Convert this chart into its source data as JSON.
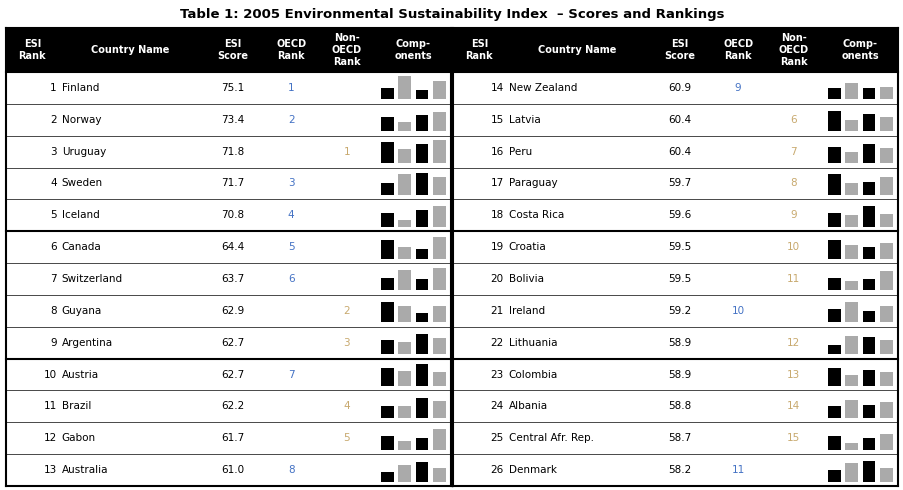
{
  "title": "Table 1: 2005 Environmental Sustainability Index  – Scores and Rankings",
  "header": [
    "ESI\nRank",
    "Country Name",
    "ESI\nScore",
    "OECD\nRank",
    "Non-\nOECD\nRank",
    "Comp-\nonents"
  ],
  "left_data": [
    [
      1,
      "Finland",
      75.1,
      1,
      "",
      [
        0.5,
        1.0,
        0.4,
        0.8
      ]
    ],
    [
      2,
      "Norway",
      73.4,
      2,
      "",
      [
        0.6,
        0.4,
        0.7,
        0.85
      ]
    ],
    [
      3,
      "Uruguay",
      71.8,
      "",
      1,
      [
        0.9,
        0.6,
        0.85,
        1.0
      ]
    ],
    [
      4,
      "Sweden",
      71.7,
      3,
      "",
      [
        0.5,
        0.9,
        0.95,
        0.8
      ]
    ],
    [
      5,
      "Iceland",
      70.8,
      4,
      "",
      [
        0.6,
        0.3,
        0.75,
        0.9
      ]
    ],
    [
      6,
      "Canada",
      64.4,
      5,
      "",
      [
        0.8,
        0.5,
        0.4,
        0.95
      ]
    ],
    [
      7,
      "Switzerland",
      63.7,
      6,
      "",
      [
        0.55,
        0.9,
        0.5,
        1.0
      ]
    ],
    [
      8,
      "Guyana",
      62.9,
      "",
      2,
      [
        0.9,
        0.7,
        0.4,
        0.7
      ]
    ],
    [
      9,
      "Argentina",
      62.7,
      "",
      3,
      [
        0.6,
        0.55,
        0.9,
        0.7
      ]
    ],
    [
      10,
      "Austria",
      62.7,
      7,
      "",
      [
        0.8,
        0.65,
        0.95,
        0.6
      ]
    ],
    [
      11,
      "Brazil",
      62.2,
      "",
      4,
      [
        0.5,
        0.5,
        0.85,
        0.75
      ]
    ],
    [
      12,
      "Gabon",
      61.7,
      "",
      5,
      [
        0.6,
        0.4,
        0.5,
        0.9
      ]
    ],
    [
      13,
      "Australia",
      61.0,
      8,
      "",
      [
        0.4,
        0.7,
        0.85,
        0.6
      ]
    ]
  ],
  "right_data": [
    [
      14,
      "New Zealand",
      60.9,
      9,
      "",
      [
        0.5,
        0.7,
        0.5,
        0.55
      ]
    ],
    [
      15,
      "Latvia",
      60.4,
      "",
      6,
      [
        0.9,
        0.5,
        0.75,
        0.6
      ]
    ],
    [
      16,
      "Peru",
      60.4,
      "",
      7,
      [
        0.7,
        0.5,
        0.85,
        0.65
      ]
    ],
    [
      17,
      "Paraguay",
      59.7,
      "",
      8,
      [
        0.9,
        0.5,
        0.55,
        0.8
      ]
    ],
    [
      18,
      "Costa Rica",
      59.6,
      "",
      9,
      [
        0.6,
        0.5,
        0.9,
        0.55
      ]
    ],
    [
      19,
      "Croatia",
      59.5,
      "",
      10,
      [
        0.8,
        0.6,
        0.5,
        0.7
      ]
    ],
    [
      20,
      "Bolivia",
      59.5,
      "",
      11,
      [
        0.55,
        0.4,
        0.5,
        0.85
      ]
    ],
    [
      21,
      "Ireland",
      59.2,
      10,
      "",
      [
        0.6,
        0.9,
        0.5,
        0.7
      ]
    ],
    [
      22,
      "Lithuania",
      58.9,
      "",
      12,
      [
        0.4,
        0.8,
        0.75,
        0.6
      ]
    ],
    [
      23,
      "Colombia",
      58.9,
      "",
      13,
      [
        0.8,
        0.5,
        0.7,
        0.6
      ]
    ],
    [
      24,
      "Albania",
      58.8,
      "",
      14,
      [
        0.5,
        0.8,
        0.55,
        0.7
      ]
    ],
    [
      25,
      "Central Afr. Rep.",
      58.7,
      "",
      15,
      [
        0.6,
        0.3,
        0.5,
        0.7
      ]
    ],
    [
      26,
      "Denmark",
      58.2,
      11,
      "",
      [
        0.5,
        0.8,
        0.9,
        0.6
      ]
    ]
  ],
  "header_bg": "#000000",
  "header_fg": "#ffffff",
  "rank_color": "#000000",
  "score_color": "#000000",
  "oecd_color": "#4472c4",
  "nonoecd_color": "#c8a96e",
  "thick_after_rows": [
    5,
    9
  ]
}
